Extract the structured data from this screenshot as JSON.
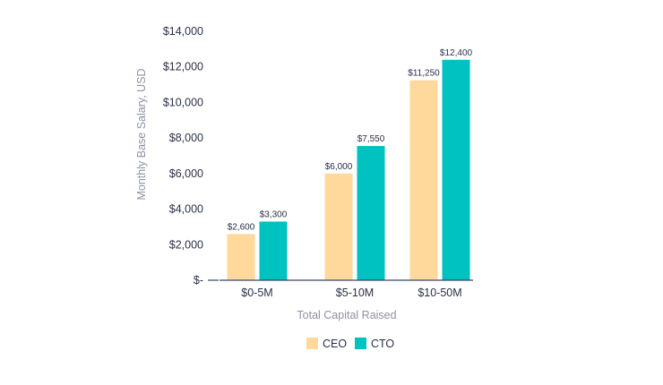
{
  "colors": {
    "ceo": "#ffd99b",
    "cto": "#00c2c0",
    "axis": "#3a4366",
    "text": "#2a3048",
    "axis_title": "#8e93a2"
  },
  "chart_data": {
    "type": "bar",
    "title": "",
    "xlabel": "Total Capital Raised",
    "ylabel": "Monthly Base Salary, USD",
    "categories": [
      "$0-5M",
      "$5-10M",
      "$10-50M"
    ],
    "series": [
      {
        "name": "CEO",
        "values": [
          2600,
          6000,
          11250
        ],
        "labels": [
          "$2,600",
          "$6,000",
          "$11,250"
        ]
      },
      {
        "name": "CTO",
        "values": [
          3300,
          7550,
          12400
        ],
        "labels": [
          "$3,300",
          "$7,550",
          "$12,400"
        ]
      }
    ],
    "ylim": [
      0,
      14000
    ],
    "yticks": [
      0,
      2000,
      4000,
      6000,
      8000,
      10000,
      12000,
      14000
    ],
    "ytick_labels": [
      "$-",
      "$2,000",
      "$4,000",
      "$6,000",
      "$8,000",
      "$10,000",
      "$12,000",
      "$14,000"
    ],
    "grid": false,
    "legend_position": "bottom-center"
  }
}
